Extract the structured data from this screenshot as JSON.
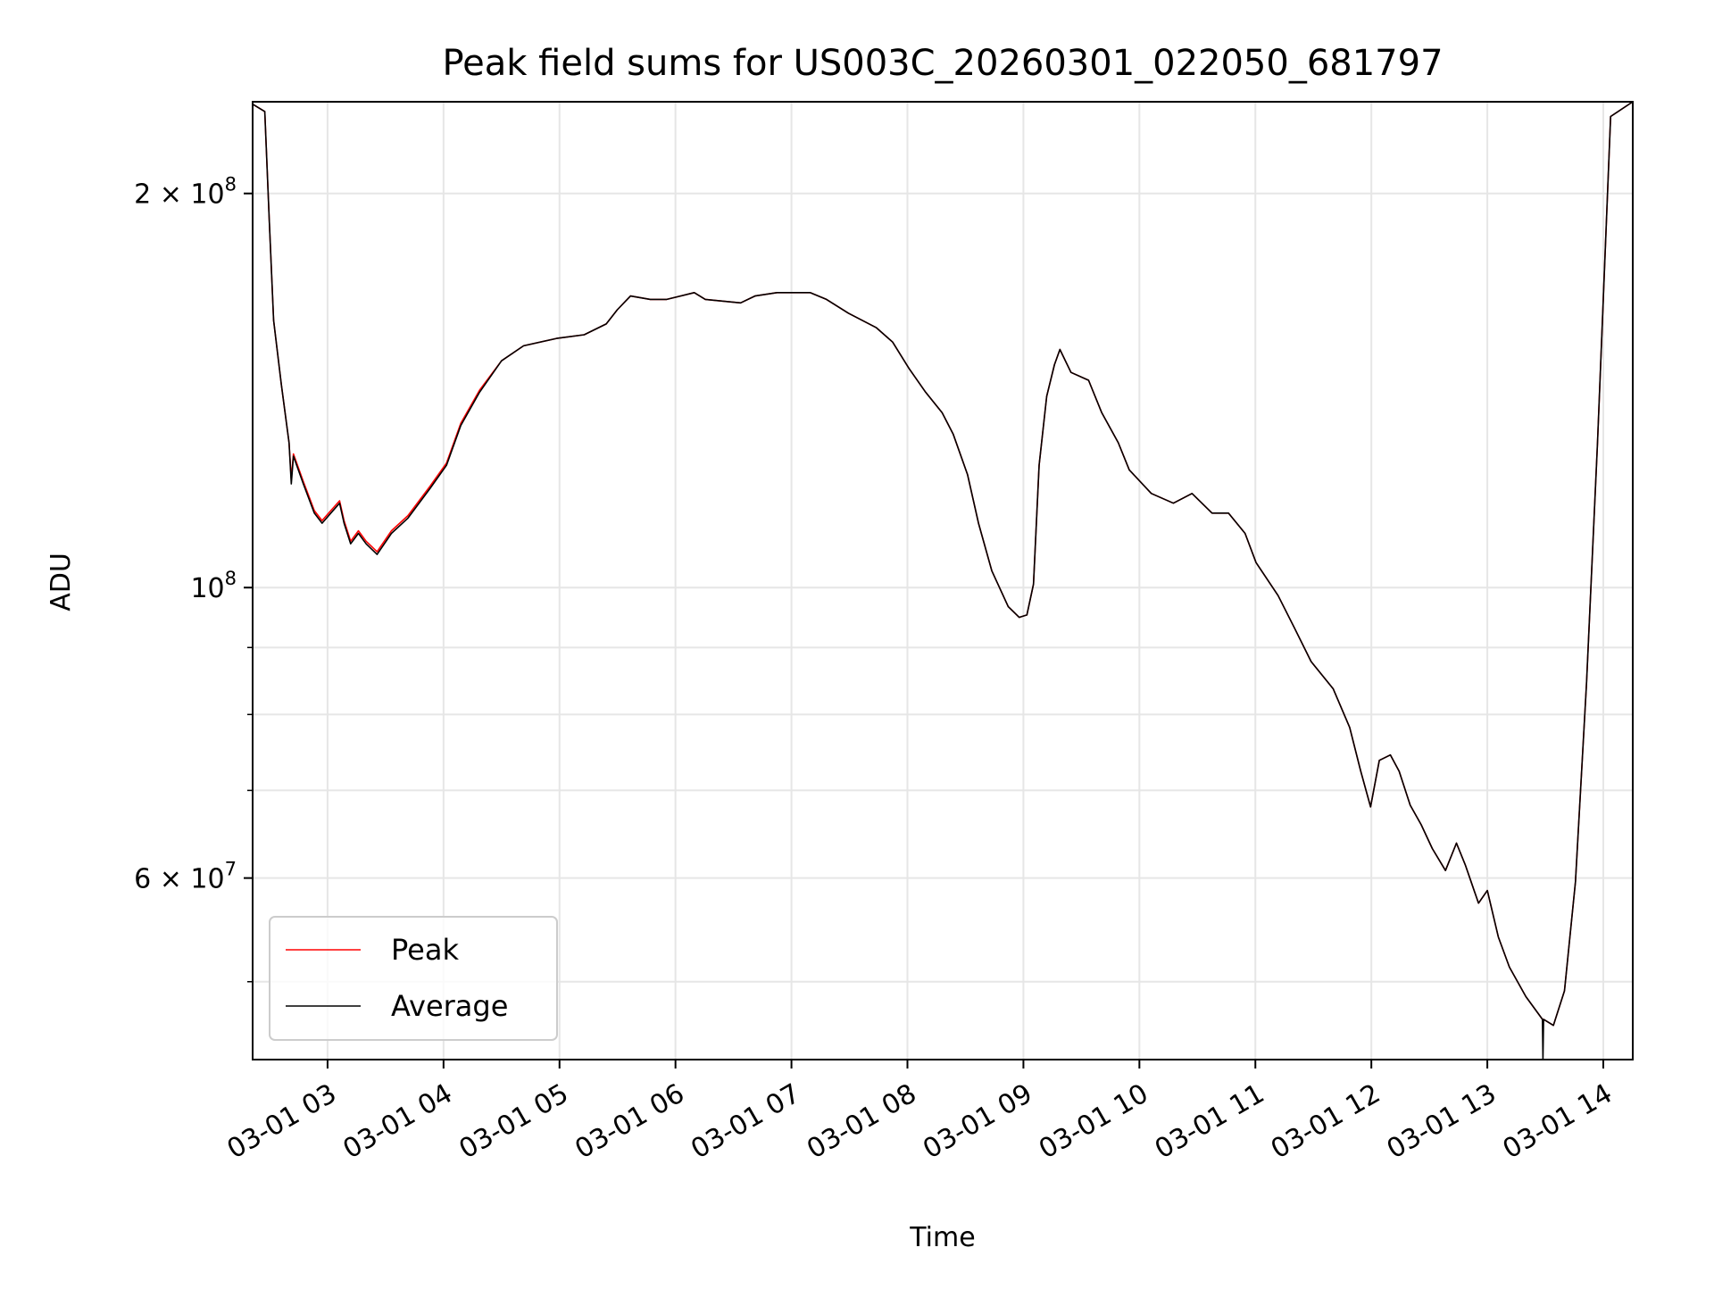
{
  "chart_data": {
    "type": "line",
    "title": "Peak field sums for US003C_20260301_022050_681797",
    "xlabel": "Time",
    "ylabel": "ADU",
    "yscale": "log",
    "xlim_hours": [
      2.354,
      14.254
    ],
    "ylim": [
      43600000,
      235000000
    ],
    "grid": true,
    "legend_position": "lower-left",
    "x_ticks": [
      {
        "hour": 3,
        "label": "03-01 03"
      },
      {
        "hour": 4,
        "label": "03-01 04"
      },
      {
        "hour": 5,
        "label": "03-01 05"
      },
      {
        "hour": 6,
        "label": "03-01 06"
      },
      {
        "hour": 7,
        "label": "03-01 07"
      },
      {
        "hour": 8,
        "label": "03-01 08"
      },
      {
        "hour": 9,
        "label": "03-01 09"
      },
      {
        "hour": 10,
        "label": "03-01 10"
      },
      {
        "hour": 11,
        "label": "03-01 11"
      },
      {
        "hour": 12,
        "label": "03-01 12"
      },
      {
        "hour": 13,
        "label": "03-01 13"
      },
      {
        "hour": 14,
        "label": "03-01 14"
      }
    ],
    "y_major_ticks": [
      {
        "value": 200000000,
        "base": "2 × 10",
        "exp": "8"
      },
      {
        "value": 100000000,
        "base": "10",
        "exp": "8"
      },
      {
        "value": 60000000,
        "base": "6 × 10",
        "exp": "7"
      }
    ],
    "y_minor_ticks": [
      50000000,
      70000000,
      80000000,
      90000000
    ],
    "x_hours": [
      2.354,
      2.459,
      2.497,
      2.535,
      2.601,
      2.668,
      2.687,
      2.706,
      2.791,
      2.886,
      2.953,
      3.028,
      3.104,
      3.142,
      3.199,
      3.266,
      3.332,
      3.427,
      3.551,
      3.693,
      3.883,
      4.026,
      4.149,
      4.311,
      4.5,
      4.69,
      4.975,
      5.213,
      5.403,
      5.498,
      5.612,
      5.783,
      5.925,
      6.162,
      6.257,
      6.561,
      6.685,
      6.875,
      7.16,
      7.302,
      7.492,
      7.73,
      7.872,
      8.014,
      8.157,
      8.299,
      8.394,
      8.518,
      8.613,
      8.727,
      8.869,
      8.964,
      9.03,
      9.087,
      9.135,
      9.201,
      9.268,
      9.315,
      9.41,
      9.562,
      9.676,
      9.818,
      9.913,
      10.103,
      10.293,
      10.454,
      10.626,
      10.768,
      10.911,
      11.006,
      11.196,
      11.338,
      11.481,
      11.671,
      11.813,
      11.909,
      11.993,
      12.069,
      12.164,
      12.24,
      12.335,
      12.43,
      12.525,
      12.639,
      12.734,
      12.81,
      12.924,
      13.0,
      13.095,
      13.19,
      13.333,
      13.475,
      13.48,
      13.485,
      13.57,
      13.665,
      13.76,
      13.855,
      13.95,
      14.063,
      14.254
    ],
    "series": [
      {
        "name": "Peak",
        "color": "#ff0000",
        "values": [
          234,
          231,
          191,
          160,
          143,
          129,
          121,
          126.5,
          120.5,
          114.5,
          112.5,
          114.5,
          116.5,
          112.5,
          108.5,
          110.5,
          108.5,
          106.5,
          110.5,
          113.5,
          119.5,
          124.5,
          133.5,
          141.5,
          149,
          153,
          155,
          156,
          159,
          163,
          167,
          166,
          166,
          168,
          166,
          165,
          167,
          168,
          168,
          166,
          162,
          158,
          154,
          147,
          141,
          136,
          131,
          122,
          112,
          103,
          96.7,
          94.9,
          95.3,
          100.6,
          124,
          140,
          148,
          152,
          146,
          144,
          136,
          129,
          123,
          118,
          116,
          118,
          114,
          114,
          110,
          104.5,
          98.6,
          93.1,
          87.8,
          83.7,
          78.2,
          72.4,
          68.0,
          73.8,
          74.5,
          72.4,
          68.2,
          65.9,
          63.2,
          60.8,
          63.8,
          61.4,
          57.4,
          58.7,
          54.1,
          51.3,
          48.7,
          46.8,
          46.8,
          46.8,
          46.3,
          49.2,
          59.6,
          84.5,
          129,
          229,
          235
        ]
      },
      {
        "name": "Average",
        "color": "#000000",
        "values": [
          234,
          231,
          191,
          160,
          143,
          129,
          120,
          126,
          120,
          114,
          112,
          114,
          116,
          112,
          108,
          110,
          108,
          106,
          110,
          113,
          119,
          124,
          133,
          141,
          149,
          153,
          155,
          156,
          159,
          163,
          167,
          166,
          166,
          168,
          166,
          165,
          167,
          168,
          168,
          166,
          162,
          158,
          154,
          147,
          141,
          136,
          131,
          122,
          112,
          103,
          96.7,
          94.9,
          95.3,
          100.6,
          124,
          140,
          148,
          152,
          146,
          144,
          136,
          129,
          123,
          118,
          116,
          118,
          114,
          114,
          110,
          104.5,
          98.6,
          93.1,
          87.8,
          83.7,
          78.2,
          72.4,
          68.0,
          73.8,
          74.5,
          72.4,
          68.2,
          65.9,
          63.2,
          60.8,
          63.8,
          61.4,
          57.4,
          58.7,
          54.1,
          51.3,
          48.7,
          46.8,
          43.6,
          46.8,
          46.3,
          49.2,
          59.6,
          84.5,
          129,
          229,
          235
        ]
      }
    ],
    "values_unit_multiplier": 1000000
  }
}
